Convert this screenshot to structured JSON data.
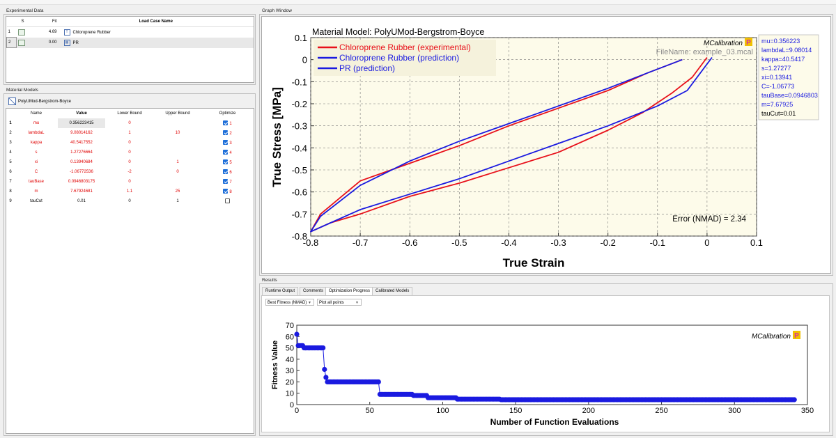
{
  "experimental_data": {
    "title": "Experimental Data",
    "headers": {
      "s": "S",
      "fit": "Fit",
      "name": "Load Case Name"
    },
    "rows": [
      {
        "num": "1",
        "fit": "4.69",
        "name": "Chloroprene Rubber"
      },
      {
        "num": "2",
        "fit": "0.00",
        "name": "PR"
      }
    ]
  },
  "material_models": {
    "title": "Material Models",
    "model_name": "PolyUMod-Bergstrom-Boyce",
    "headers": {
      "name": "Name",
      "value": "Value",
      "lower": "Lower Bound",
      "upper": "Upper Bound",
      "optimize": "Optimize"
    },
    "rows": [
      {
        "num": "1",
        "name": "mu",
        "value": "0.356223415",
        "lower": "0",
        "upper": "",
        "opt": "1",
        "checked": true
      },
      {
        "num": "2",
        "name": "lambdaL",
        "value": "9.08014162",
        "lower": "1",
        "upper": "10",
        "opt": "2",
        "checked": true
      },
      {
        "num": "3",
        "name": "kappa",
        "value": "40.5417552",
        "lower": "0",
        "upper": "",
        "opt": "3",
        "checked": true
      },
      {
        "num": "4",
        "name": "s",
        "value": "1.27276664",
        "lower": "0",
        "upper": "",
        "opt": "4",
        "checked": true
      },
      {
        "num": "5",
        "name": "xi",
        "value": "0.13940684",
        "lower": "0",
        "upper": "1",
        "opt": "5",
        "checked": true
      },
      {
        "num": "6",
        "name": "C",
        "value": "-1.06772536",
        "lower": "-2",
        "upper": "0",
        "opt": "6",
        "checked": true
      },
      {
        "num": "7",
        "name": "tauBase",
        "value": "0.0946803175",
        "lower": "0",
        "upper": "",
        "opt": "7",
        "checked": true
      },
      {
        "num": "8",
        "name": "m",
        "value": "7.67924681",
        "lower": "1.1",
        "upper": "25",
        "opt": "8",
        "checked": true
      },
      {
        "num": "9",
        "name": "tauCut",
        "value": "0.01",
        "lower": "0",
        "upper": "1",
        "opt": "",
        "checked": false
      }
    ]
  },
  "graph_window": {
    "title": "Graph Window",
    "brand": "MCalibration",
    "brand_badge": "P",
    "colors": {
      "experimental": "#e8101a",
      "prediction": "#1a1ae0",
      "plot_bg": "#fdfbea",
      "badge": "#d62aa4",
      "badge_bg": "#f0c000"
    },
    "chart_data": {
      "type": "line",
      "title": "Material Model: PolyUMod-Bergstrom-Boyce",
      "xlabel": "True Strain",
      "ylabel": "True Stress [MPa]",
      "xlim": [
        -0.8,
        0.1
      ],
      "ylim": [
        -0.8,
        0.1
      ],
      "xticks": [
        "-0.8",
        "-0.7",
        "-0.6",
        "-0.5",
        "-0.4",
        "-0.3",
        "-0.2",
        "-0.1",
        "0",
        "0.1"
      ],
      "yticks": [
        "0.1",
        "0",
        "-0.1",
        "-0.2",
        "-0.3",
        "-0.4",
        "-0.5",
        "-0.6",
        "-0.7",
        "-0.8"
      ],
      "legend": [
        "Chloroprene Rubber (experimental)",
        "Chloroprene Rubber (prediction)",
        "PR (prediction)"
      ],
      "filename": "FileName: example_03.mcal",
      "error": "Error (NMAD) = 2.34",
      "params": [
        "mu=0.356223",
        "lambdaL=9.08014",
        "kappa=40.5417",
        "s=1.27277",
        "xi=0.13941",
        "C=-1.06773",
        "tauBase=0.0946803",
        "m=7.67925",
        "tauCut=0.01"
      ],
      "series": [
        {
          "name": "Chloroprene Rubber (experimental)",
          "color": "#e8101a",
          "x": [
            -0.05,
            -0.12,
            -0.2,
            -0.3,
            -0.4,
            -0.5,
            -0.6,
            -0.7,
            -0.78,
            -0.8,
            -0.76,
            -0.7,
            -0.6,
            -0.5,
            -0.4,
            -0.3,
            -0.2,
            -0.13,
            -0.07,
            -0.03,
            0
          ],
          "y": [
            0,
            -0.06,
            -0.14,
            -0.22,
            -0.3,
            -0.39,
            -0.47,
            -0.55,
            -0.7,
            -0.78,
            -0.74,
            -0.7,
            -0.62,
            -0.56,
            -0.49,
            -0.42,
            -0.32,
            -0.24,
            -0.15,
            -0.08,
            0.01
          ]
        },
        {
          "name": "Chloroprene Rubber (prediction)",
          "color": "#1a1ae0",
          "x": [
            -0.05,
            -0.12,
            -0.2,
            -0.3,
            -0.4,
            -0.5,
            -0.6,
            -0.7,
            -0.78,
            -0.8,
            -0.76,
            -0.7,
            -0.6,
            -0.5,
            -0.4,
            -0.3,
            -0.2,
            -0.1,
            -0.04,
            0.01
          ],
          "y": [
            0,
            -0.06,
            -0.13,
            -0.21,
            -0.29,
            -0.37,
            -0.46,
            -0.57,
            -0.71,
            -0.78,
            -0.74,
            -0.68,
            -0.61,
            -0.54,
            -0.46,
            -0.38,
            -0.3,
            -0.21,
            -0.14,
            0.01
          ]
        }
      ]
    }
  },
  "results": {
    "title": "Results",
    "tabs": [
      "Runtime Output",
      "Comments",
      "Optimization Progress",
      "Calibrated Models"
    ],
    "active_tab": "Optimization Progress",
    "fitness_select": "Best Fitness (NMAD)",
    "points_select": "Plot all points",
    "brand": "MCalibration",
    "brand_badge": "P",
    "chart_data": {
      "type": "scatter",
      "xlabel": "Number of Function Evaluations",
      "ylabel": "Fitness Value",
      "xlim": [
        0,
        350
      ],
      "ylim": [
        0,
        70
      ],
      "xticks": [
        "0",
        "50",
        "100",
        "150",
        "200",
        "250",
        "300",
        "350"
      ],
      "yticks": [
        "70",
        "60",
        "50",
        "40",
        "30",
        "20",
        "10",
        "0"
      ],
      "color": "#1a1ae0",
      "steps": [
        [
          0,
          62
        ],
        [
          1,
          52
        ],
        [
          5,
          50
        ],
        [
          19,
          31
        ],
        [
          20,
          24
        ],
        [
          21,
          20
        ],
        [
          56,
          20
        ],
        [
          57,
          9
        ],
        [
          80,
          8
        ],
        [
          90,
          6
        ],
        [
          110,
          4.8
        ],
        [
          140,
          4.3
        ],
        [
          341,
          4.3
        ]
      ]
    }
  }
}
